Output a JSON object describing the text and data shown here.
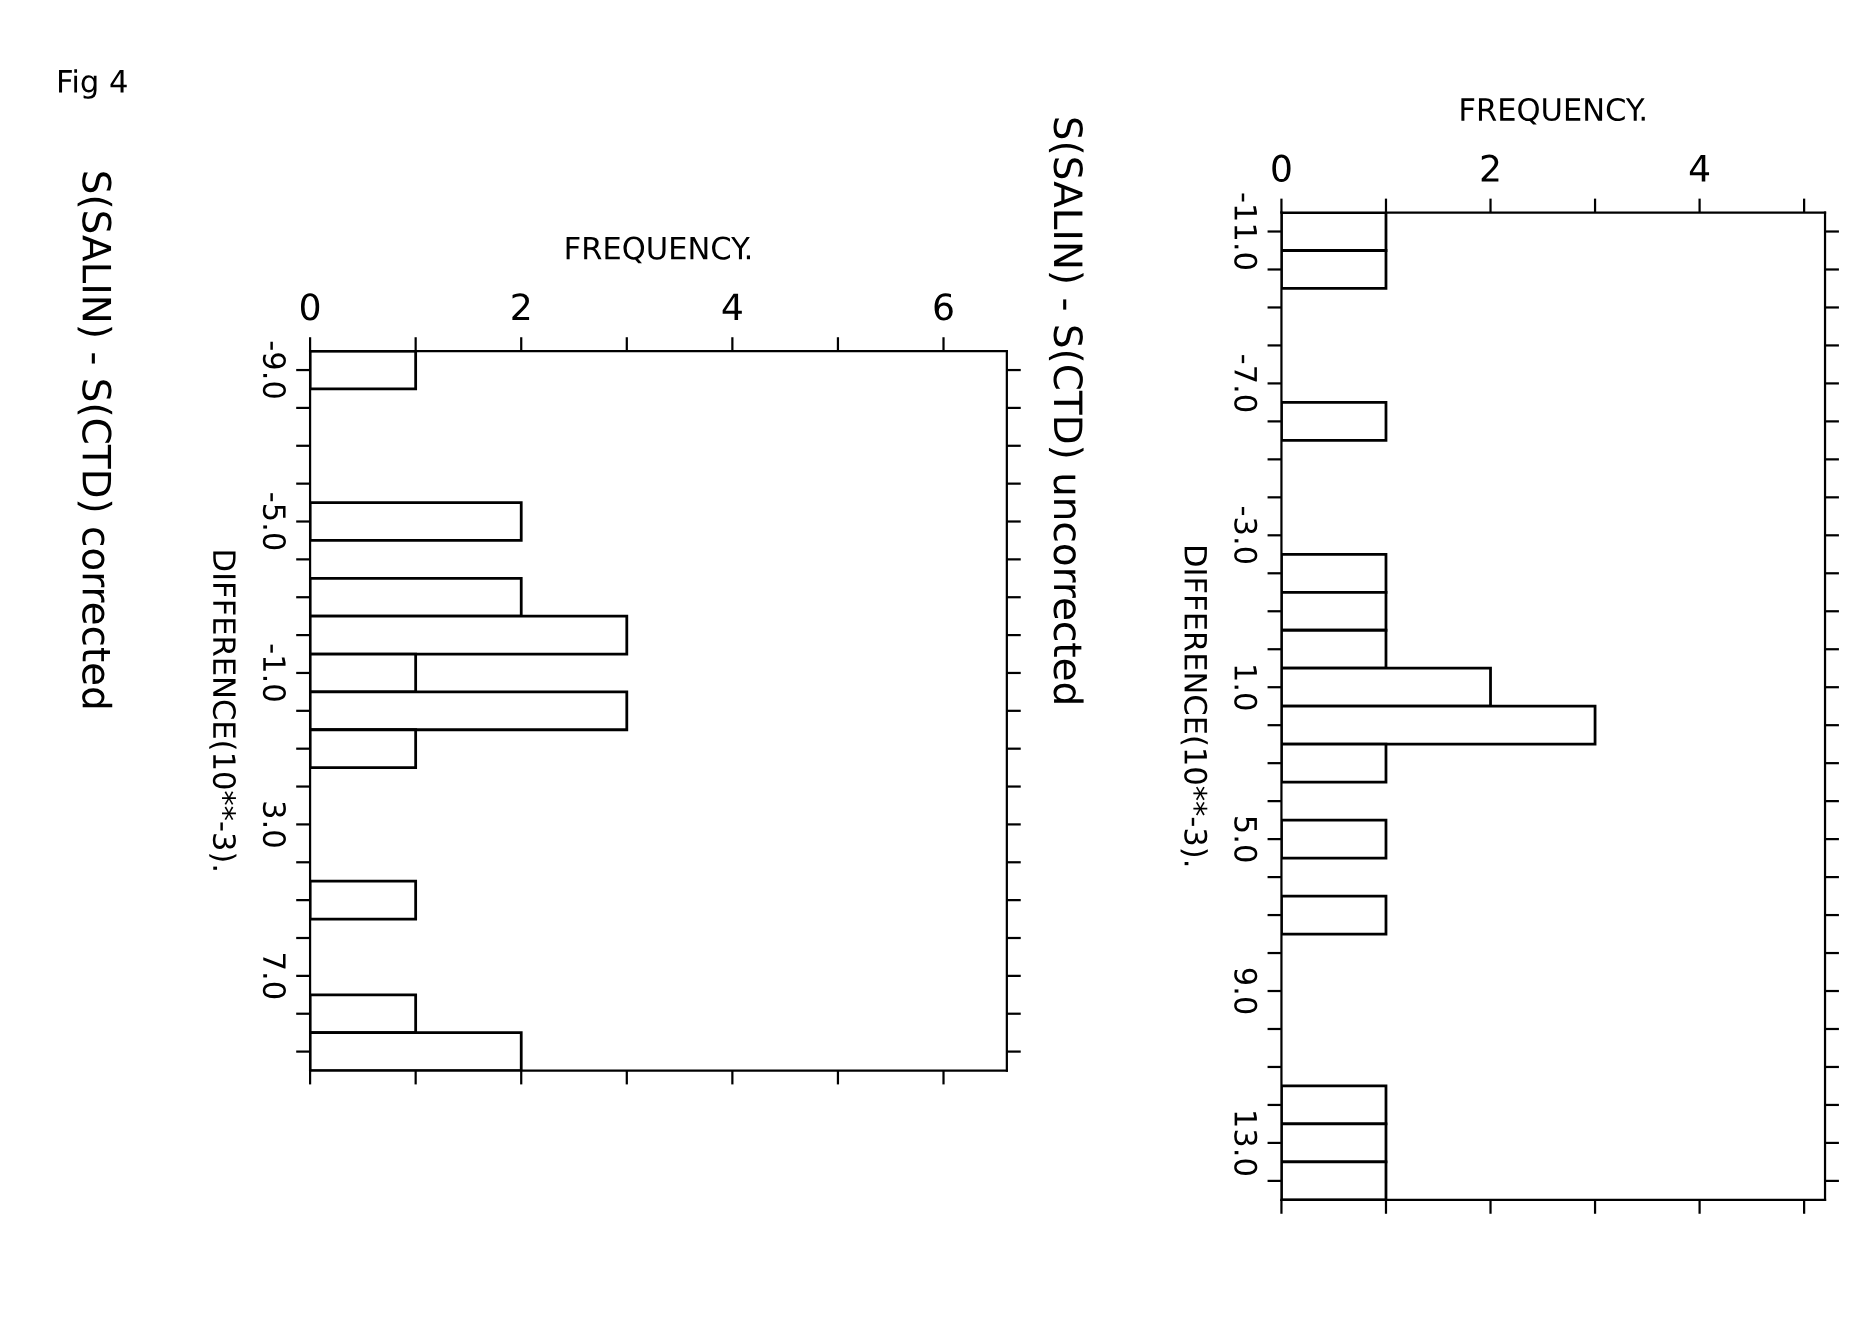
{
  "chart_data": [
    {
      "type": "histogram",
      "orientation": "horizontal",
      "title": "S(SALIN) - S(CTD) corrected",
      "xlabel": "FREQUENCY.",
      "ylabel": "DIFFERENCE(10**-3).",
      "annotations": [
        "Fig 4"
      ],
      "bins": [
        -9.5,
        -8.5,
        -7.5,
        -6.5,
        -5.5,
        -4.5,
        -3.5,
        -2.5,
        -1.5,
        -0.5,
        0.5,
        1.5,
        2.5,
        3.5,
        4.5,
        5.5,
        6.5,
        7.5,
        8.5,
        9.5
      ],
      "values": [
        1,
        0,
        0,
        0,
        2,
        0,
        2,
        3,
        1,
        3,
        1,
        0,
        0,
        0,
        1,
        0,
        0,
        1,
        2
      ],
      "color": "#ffffff",
      "xlim": [
        0,
        6.6
      ],
      "xticks": [
        0,
        {
          "value": 1,
          "label": null
        },
        2,
        {
          "value": 3,
          "label": null
        },
        4,
        {
          "value": 5,
          "label": null
        },
        6
      ],
      "ylim": [
        9.5,
        -9.5
      ],
      "yticks": [
        {
          "value": -9,
          "label": "-9.0"
        },
        {
          "value": -8,
          "label": null
        },
        {
          "value": -7,
          "label": null
        },
        {
          "value": -6,
          "label": null
        },
        {
          "value": -5,
          "label": "-5.0"
        },
        {
          "value": -4,
          "label": null
        },
        {
          "value": -3,
          "label": null
        },
        {
          "value": -2,
          "label": null
        },
        {
          "value": -1,
          "label": "-1.0"
        },
        {
          "value": 0,
          "label": null
        },
        {
          "value": 1,
          "label": null
        },
        {
          "value": 2,
          "label": null
        },
        {
          "value": 3,
          "label": "3.0"
        },
        {
          "value": 4,
          "label": null
        },
        {
          "value": 5,
          "label": null
        },
        {
          "value": 6,
          "label": null
        },
        {
          "value": 7,
          "label": "7.0"
        },
        {
          "value": 8,
          "label": null
        },
        {
          "value": 9,
          "label": null
        }
      ],
      "grid": false,
      "legend": false
    },
    {
      "type": "histogram",
      "orientation": "horizontal",
      "title": "S(SALIN) - S(CTD) uncorrected",
      "xlabel": "FREQUENCY.",
      "ylabel": "DIFFERENCE(10**-3).",
      "bins": [
        -11.5,
        -10.5,
        -9.5,
        -8.5,
        -7.5,
        -6.5,
        -5.5,
        -4.5,
        -3.5,
        -2.5,
        -1.5,
        -0.5,
        0.5,
        1.5,
        2.5,
        3.5,
        4.5,
        5.5,
        6.5,
        7.5,
        8.5,
        9.5,
        10.5,
        11.5,
        12.5,
        13.5,
        14.5
      ],
      "values": [
        1,
        1,
        0,
        0,
        0,
        1,
        0,
        0,
        0,
        1,
        1,
        1,
        2,
        3,
        1,
        0,
        1,
        0,
        1,
        0,
        0,
        0,
        0,
        1,
        1,
        1
      ],
      "color": "#ffffff",
      "xlim": [
        0,
        5.2
      ],
      "xticks": [
        0,
        {
          "value": 1,
          "label": null
        },
        2,
        {
          "value": 3,
          "label": null
        },
        4,
        {
          "value": 5,
          "label": null
        }
      ],
      "ylim": [
        14.5,
        -11.5
      ],
      "yticks": [
        {
          "value": -11,
          "label": "-11.0"
        },
        {
          "value": -10,
          "label": null
        },
        {
          "value": -9,
          "label": null
        },
        {
          "value": -8,
          "label": null
        },
        {
          "value": -7,
          "label": "-7.0"
        },
        {
          "value": -6,
          "label": null
        },
        {
          "value": -5,
          "label": null
        },
        {
          "value": -4,
          "label": null
        },
        {
          "value": -3,
          "label": "-3.0"
        },
        {
          "value": -2,
          "label": null
        },
        {
          "value": -1,
          "label": null
        },
        {
          "value": 0,
          "label": null
        },
        {
          "value": 1,
          "label": "1.0"
        },
        {
          "value": 2,
          "label": null
        },
        {
          "value": 3,
          "label": null
        },
        {
          "value": 4,
          "label": null
        },
        {
          "value": 5,
          "label": "5.0"
        },
        {
          "value": 6,
          "label": null
        },
        {
          "value": 7,
          "label": null
        },
        {
          "value": 8,
          "label": null
        },
        {
          "value": 9,
          "label": "9.0"
        },
        {
          "value": 10,
          "label": null
        },
        {
          "value": 11,
          "label": null
        },
        {
          "value": 12,
          "label": null
        },
        {
          "value": 13,
          "label": "13.0"
        },
        {
          "value": 14,
          "label": null
        }
      ],
      "grid": false,
      "legend": false
    }
  ]
}
